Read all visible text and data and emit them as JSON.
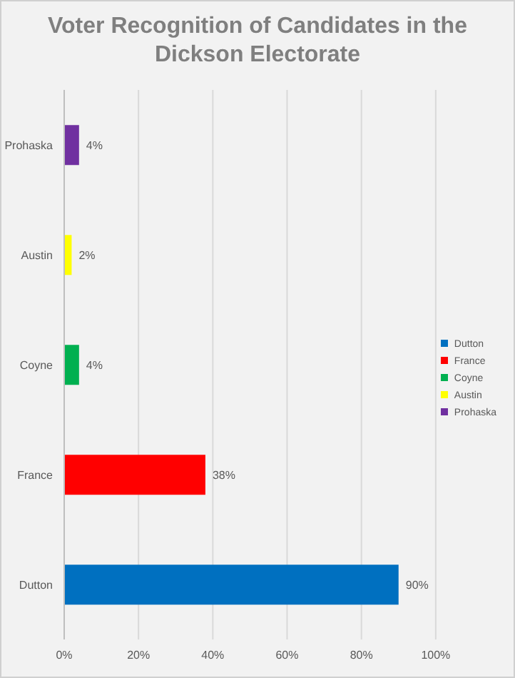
{
  "chart_data": {
    "type": "bar",
    "orientation": "horizontal",
    "stacked": true,
    "title": "Voter Recognition of Candidates in the Dickson Electorate",
    "categories": [
      "Prohaska",
      "Austin",
      "Coyne",
      "France",
      "Dutton"
    ],
    "series": [
      {
        "name": "Dutton",
        "color": "#0070c0",
        "values": [
          null,
          null,
          null,
          null,
          90
        ],
        "value_labels": [
          null,
          null,
          null,
          null,
          "90%"
        ]
      },
      {
        "name": "France",
        "color": "#ff0000",
        "values": [
          null,
          null,
          null,
          38,
          null
        ],
        "value_labels": [
          null,
          null,
          null,
          "38%",
          null
        ]
      },
      {
        "name": "Coyne",
        "color": "#00b050",
        "values": [
          null,
          null,
          4,
          null,
          null
        ],
        "value_labels": [
          null,
          null,
          "4%",
          null,
          null
        ]
      },
      {
        "name": "Austin",
        "color": "#ffff00",
        "values": [
          null,
          2,
          null,
          null,
          null
        ],
        "value_labels": [
          null,
          "2%",
          null,
          null,
          null
        ]
      },
      {
        "name": "Prohaska",
        "color": "#7030a0",
        "values": [
          4,
          null,
          null,
          null,
          null
        ],
        "value_labels": [
          "4%",
          null,
          null,
          null,
          null
        ]
      }
    ],
    "xlim": [
      0,
      100
    ],
    "xticks": [
      {
        "value": 0,
        "label": "0%"
      },
      {
        "value": 20,
        "label": "20%"
      },
      {
        "value": 40,
        "label": "40%"
      },
      {
        "value": 60,
        "label": "60%"
      },
      {
        "value": 80,
        "label": "80%"
      },
      {
        "value": 100,
        "label": "100%"
      }
    ],
    "grid": "x",
    "legend": "right"
  }
}
